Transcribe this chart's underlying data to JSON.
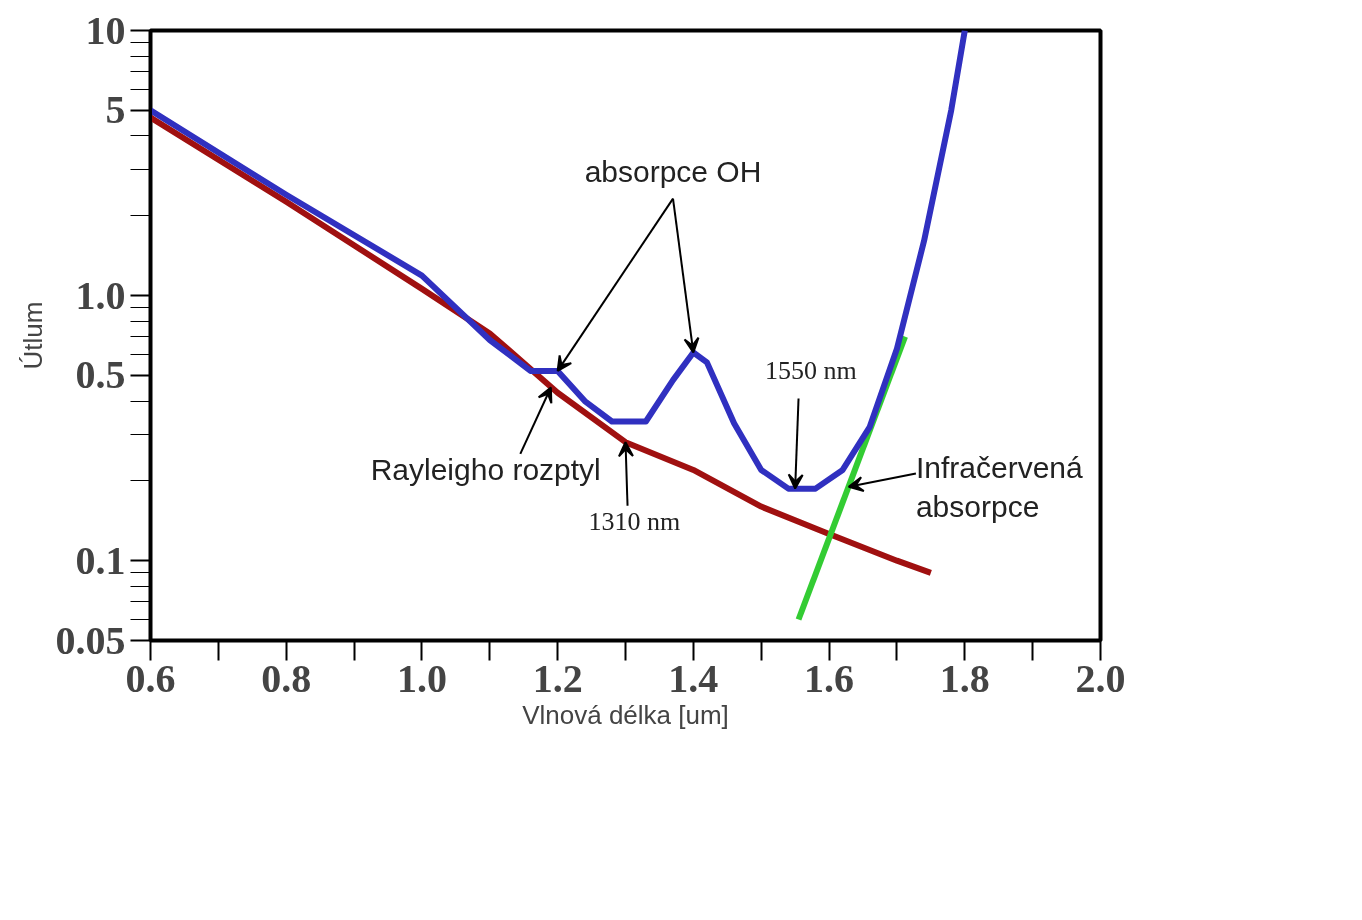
{
  "chart_data": {
    "type": "line",
    "xlabel": "Vlnová délka [um]",
    "ylabel": "Útlum",
    "log": "y",
    "grid": false,
    "line_style": "solid",
    "marker": "none",
    "xlim": [
      0.6,
      2.0
    ],
    "ylim": [
      0.05,
      10
    ],
    "xticks": [
      0.6,
      0.8,
      {
        "value": 1.0,
        "label": "1.0"
      },
      1.2,
      1.4,
      1.6,
      1.8,
      {
        "value": 2.0,
        "label": "2.0"
      }
    ],
    "yticks": [
      0.05,
      0.1,
      0.5,
      {
        "value": 1,
        "label": "1.0"
      },
      5,
      10
    ],
    "series": [
      {
        "color": "#a01010",
        "x": [
          0.6,
          0.8,
          1.0,
          1.1,
          1.2,
          1.3,
          1.4,
          1.5,
          1.6,
          1.7,
          1.75
        ],
        "values": [
          4.7,
          2.26,
          1.06,
          0.72,
          0.43,
          0.28,
          0.22,
          0.16,
          0.126,
          0.1,
          0.09
        ]
      },
      {
        "color": "#33cc33",
        "x": [
          1.555,
          1.712
        ],
        "values": [
          0.06,
          0.7
        ]
      },
      {
        "color": "#3030c0",
        "x": [
          0.6,
          0.8,
          1.0,
          1.1,
          1.16,
          1.2,
          1.24,
          1.28,
          1.33,
          1.37,
          1.4,
          1.42,
          1.46,
          1.5,
          1.54,
          1.58,
          1.62,
          1.66,
          1.7,
          1.74,
          1.78,
          1.8
        ],
        "values": [
          5.0,
          2.4,
          1.19,
          0.68,
          0.52,
          0.52,
          0.4,
          0.335,
          0.335,
          0.48,
          0.61,
          0.56,
          0.33,
          0.22,
          0.187,
          0.187,
          0.22,
          0.32,
          0.63,
          1.61,
          5.0,
          10
        ]
      }
    ],
    "annotations": [
      {
        "text": "absorpce OH",
        "x": 1.2,
        "y": 0.52
      },
      {
        "text": "Rayleigho rozptyl",
        "x": 1.19,
        "y": 0.45
      },
      {
        "text": "1310 nm",
        "x": 1.3,
        "y": 0.28
      },
      {
        "text": "1550 nm",
        "x": 1.55,
        "y": 0.187
      },
      {
        "text": "Infračervená\nabsorpce",
        "x": 1.629,
        "y": 0.19
      }
    ]
  }
}
